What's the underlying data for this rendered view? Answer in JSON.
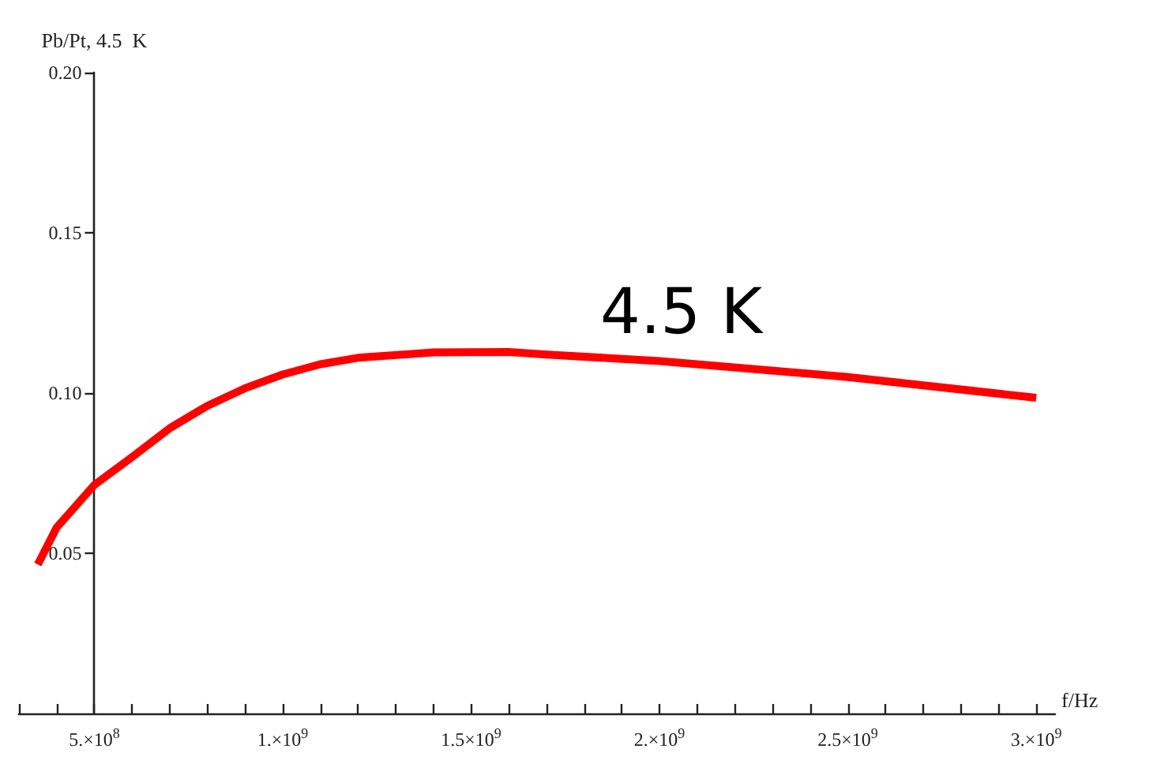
{
  "chart_data": {
    "type": "line",
    "xlabel": "f/Hz",
    "ylabel": "Pb/Pt, 4.5  K",
    "annotations": [
      "4.5 K"
    ],
    "x": [
      350000000.0,
      400000000.0,
      500000000.0,
      600000000.0,
      700000000.0,
      800000000.0,
      900000000.0,
      1000000000.0,
      1100000000.0,
      1200000000.0,
      1400000000.0,
      1600000000.0,
      1700000000.0,
      2000000000.0,
      2500000000.0,
      3000000000.0
    ],
    "series": [
      {
        "color": "#ff0000",
        "values": [
          0.0465,
          0.058,
          0.0713,
          0.08,
          0.089,
          0.096,
          0.1015,
          0.1058,
          0.109,
          0.111,
          0.1127,
          0.1128,
          0.112,
          0.11,
          0.105,
          0.0985
        ]
      }
    ],
    "xlim": [
      300000000.0,
      3050000000.0
    ],
    "ylim": [
      0,
      0.2
    ],
    "xticks": [
      {
        "value": 300000000.0,
        "label": null
      },
      {
        "value": 400000000.0,
        "label": null
      },
      {
        "value": 500000000.0,
        "label": "5.×10$^{8}$"
      },
      {
        "value": 600000000.0,
        "label": null
      },
      {
        "value": 700000000.0,
        "label": null
      },
      {
        "value": 800000000.0,
        "label": null
      },
      {
        "value": 900000000.0,
        "label": null
      },
      {
        "value": 1000000000.0,
        "label": "1.×10$^{9}$"
      },
      {
        "value": 1100000000.0,
        "label": null
      },
      {
        "value": 1200000000.0,
        "label": null
      },
      {
        "value": 1300000000.0,
        "label": null
      },
      {
        "value": 1400000000.0,
        "label": null
      },
      {
        "value": 1500000000.0,
        "label": "1.5×10$^{9}$"
      },
      {
        "value": 1600000000.0,
        "label": null
      },
      {
        "value": 1700000000.0,
        "label": null
      },
      {
        "value": 1800000000.0,
        "label": null
      },
      {
        "value": 1900000000.0,
        "label": null
      },
      {
        "value": 2000000000.0,
        "label": "2.×10$^{9}$"
      },
      {
        "value": 2100000000.0,
        "label": null
      },
      {
        "value": 2200000000.0,
        "label": null
      },
      {
        "value": 2300000000.0,
        "label": null
      },
      {
        "value": 2400000000.0,
        "label": null
      },
      {
        "value": 2500000000.0,
        "label": "2.5×10$^{9}$"
      },
      {
        "value": 2600000000.0,
        "label": null
      },
      {
        "value": 2700000000.0,
        "label": null
      },
      {
        "value": 2800000000.0,
        "label": null
      },
      {
        "value": 2900000000.0,
        "label": null
      },
      {
        "value": 3000000000.0,
        "label": "3.×10$^{9}$"
      }
    ],
    "yticks": [
      0.05,
      {
        "value": 0.1,
        "label": "0.10"
      },
      0.15,
      {
        "value": 0.2,
        "label": "0.20"
      }
    ],
    "grid": false,
    "marker": "none",
    "line_style": "solid"
  }
}
